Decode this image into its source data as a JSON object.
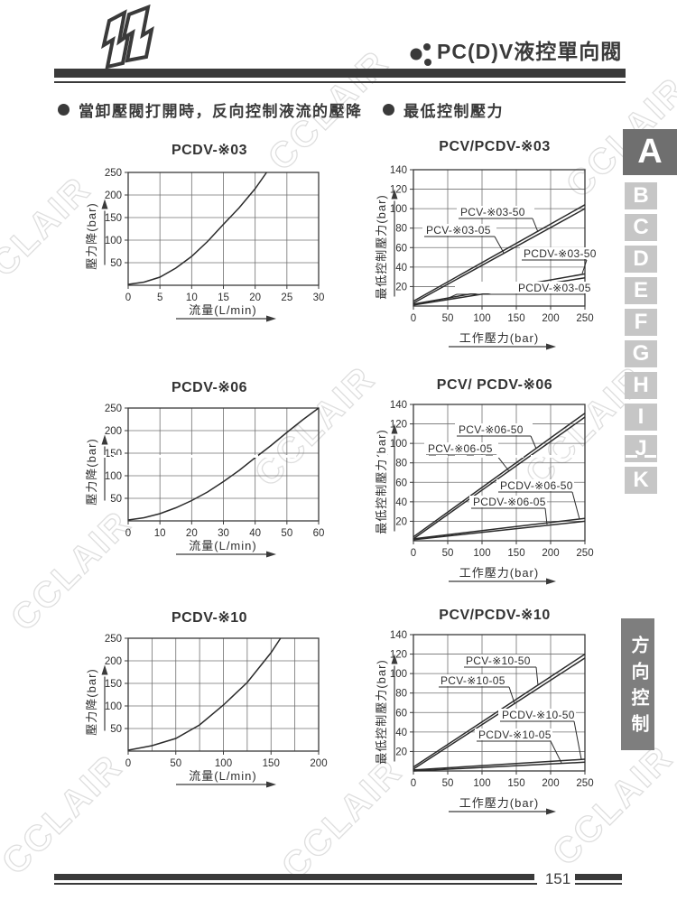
{
  "header": {
    "title": "PC(D)V液控單向閥"
  },
  "sections": {
    "left": "當卸壓閥打開時，反向控制液流的壓降",
    "right": "最低控制壓力"
  },
  "watermark": "CCLAIR",
  "tabs": {
    "items": [
      "A",
      "B",
      "C",
      "D",
      "E",
      "F",
      "G",
      "H",
      "I",
      "J",
      "K"
    ],
    "active": "A"
  },
  "side_label": "方向控制閥",
  "footer": {
    "page_number": "151"
  },
  "colors": {
    "ink": "#3a3a3a",
    "grid": "#707070",
    "curve": "#2b2b2b",
    "tab_active_bg": "#6f6f6f",
    "tab_bg": "#c6c6c6",
    "side_label_bg": "#7e7e7e",
    "watermark_stroke": "#dedede"
  },
  "chart_data": [
    {
      "id": "pcdv-03",
      "type": "line",
      "title": "PCDV-※03",
      "xlabel": "流量(L/min)",
      "ylabel": "壓力降(bar)",
      "xlim": [
        0,
        30
      ],
      "ylim": [
        0,
        250
      ],
      "grid": true,
      "x_ticks": [
        0,
        5,
        10,
        15,
        20,
        25,
        30
      ],
      "y_ticks": [
        50,
        100,
        150,
        200,
        250
      ],
      "x_grid_step": 5,
      "series": [
        {
          "name": "PCDV-※03",
          "x": [
            0,
            2.5,
            5,
            7.5,
            10,
            12.5,
            15,
            17.5,
            20,
            21.8
          ],
          "y": [
            2,
            7,
            18,
            38,
            64,
            97,
            135,
            172,
            214,
            250
          ]
        }
      ]
    },
    {
      "id": "pcv-pcdv-03",
      "type": "line",
      "title": "PCV/PCDV-※03",
      "xlabel": "工作壓力(bar)",
      "ylabel": "最低控制壓力(bar)",
      "xlim": [
        0,
        250
      ],
      "ylim": [
        0,
        140
      ],
      "grid": true,
      "x_ticks": [
        0,
        50,
        100,
        150,
        200,
        250
      ],
      "y_ticks": [
        20,
        40,
        60,
        80,
        100,
        120,
        140
      ],
      "x_grid_step": 50,
      "series": [
        {
          "name": "PCV-※03-50",
          "x": [
            0,
            250
          ],
          "y": [
            5,
            104
          ]
        },
        {
          "name": "PCV-※03-05",
          "x": [
            0,
            250
          ],
          "y": [
            3,
            100
          ]
        },
        {
          "name": "PCDV-※03-50",
          "x": [
            0,
            250
          ],
          "y": [
            2,
            33
          ]
        },
        {
          "name": "PCDV-※03-05",
          "x": [
            0,
            250
          ],
          "y": [
            1,
            29
          ]
        }
      ]
    },
    {
      "id": "pcdv-06",
      "type": "line",
      "title": "PCDV-※06",
      "xlabel": "流量(L/min)",
      "ylabel": "壓力降(bar)",
      "xlim": [
        0,
        60
      ],
      "ylim": [
        0,
        250
      ],
      "grid": true,
      "x_ticks": [
        0,
        10,
        20,
        30,
        40,
        50,
        60
      ],
      "y_ticks": [
        50,
        100,
        150,
        200,
        250
      ],
      "x_grid_step": 10,
      "series": [
        {
          "name": "PCDV-※06",
          "x": [
            0,
            5,
            10,
            15,
            20,
            25,
            30,
            35,
            40,
            45,
            50,
            55,
            60
          ],
          "y": [
            2,
            7,
            16,
            29,
            45,
            64,
            87,
            112,
            140,
            167,
            196,
            224,
            250
          ]
        }
      ]
    },
    {
      "id": "pcv-pcdv-06",
      "type": "line",
      "title": "PCV/ PCDV-※06",
      "xlabel": "工作壓力(bar)",
      "ylabel": "最低控制壓力(bar)",
      "xlim": [
        0,
        250
      ],
      "ylim": [
        0,
        140
      ],
      "grid": true,
      "x_ticks": [
        0,
        50,
        100,
        150,
        200,
        250
      ],
      "y_ticks": [
        20,
        40,
        60,
        80,
        100,
        120,
        140
      ],
      "x_grid_step": 50,
      "series": [
        {
          "name": "PCV-※06-50",
          "x": [
            0,
            250
          ],
          "y": [
            4,
            131
          ]
        },
        {
          "name": "PCV-※06-05",
          "x": [
            0,
            250
          ],
          "y": [
            2,
            127
          ]
        },
        {
          "name": "PCDV-※06-50",
          "x": [
            0,
            250
          ],
          "y": [
            2,
            23
          ]
        },
        {
          "name": "PCDV-※06-05",
          "x": [
            0,
            250
          ],
          "y": [
            1,
            20
          ]
        }
      ]
    },
    {
      "id": "pcdv-10",
      "type": "line",
      "title": "PCDV-※10",
      "xlabel": "流量(L/min)",
      "ylabel": "壓力降(bar)",
      "xlim": [
        0,
        200
      ],
      "ylim": [
        0,
        250
      ],
      "grid": true,
      "x_ticks": [
        0,
        50,
        100,
        150,
        200
      ],
      "y_ticks": [
        50,
        100,
        150,
        200,
        250
      ],
      "x_grid_step": 25,
      "series": [
        {
          "name": "PCDV-※10",
          "x": [
            0,
            25,
            50,
            75,
            100,
            125,
            150,
            160
          ],
          "y": [
            2,
            12,
            28,
            58,
            102,
            152,
            218,
            250
          ]
        }
      ]
    },
    {
      "id": "pcv-pcdv-10",
      "type": "line",
      "title": "PCV/PCDV-※10",
      "xlabel": "工作壓力(bar)",
      "ylabel": "最低控制壓力(bar)",
      "xlim": [
        0,
        250
      ],
      "ylim": [
        0,
        140
      ],
      "grid": true,
      "x_ticks": [
        0,
        50,
        100,
        150,
        200,
        250
      ],
      "y_ticks": [
        20,
        40,
        60,
        80,
        100,
        120,
        140
      ],
      "x_grid_step": 50,
      "series": [
        {
          "name": "PCV-※10-50",
          "x": [
            0,
            250
          ],
          "y": [
            4,
            120
          ]
        },
        {
          "name": "PCV-※10-05",
          "x": [
            0,
            250
          ],
          "y": [
            2,
            116
          ]
        },
        {
          "name": "PCDV-※10-50",
          "x": [
            0,
            250
          ],
          "y": [
            1,
            12
          ]
        },
        {
          "name": "PCDV-※10-05",
          "x": [
            0,
            250
          ],
          "y": [
            0,
            9
          ]
        }
      ]
    }
  ]
}
